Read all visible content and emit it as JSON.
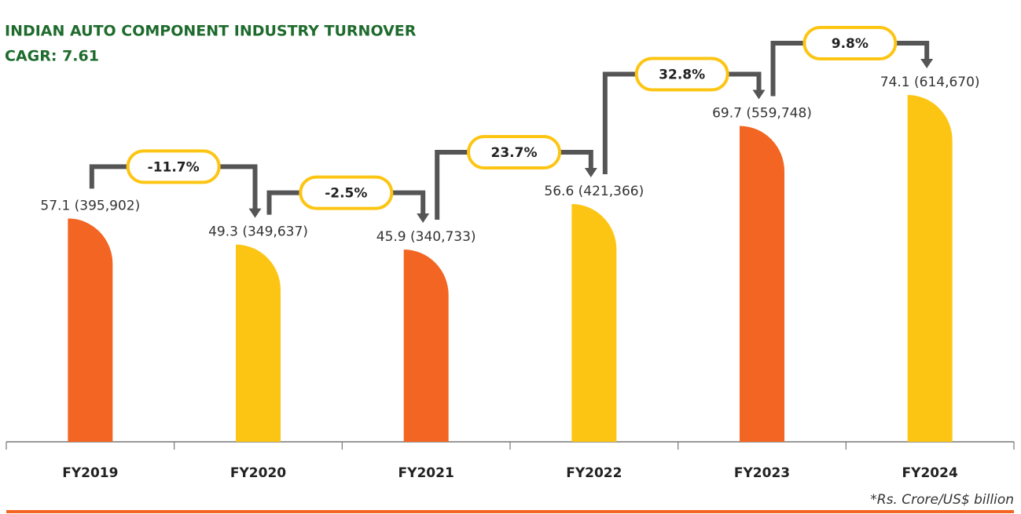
{
  "chart_data": {
    "type": "bar",
    "title": "INDIAN AUTO COMPONENT INDUSTRY TURNOVER",
    "subtitle": "CAGR: 7.61",
    "categories": [
      "FY2019",
      "FY2020",
      "FY2021",
      "FY2022",
      "FY2023",
      "FY2024"
    ],
    "values": [
      395902,
      349637,
      340733,
      421366,
      559748,
      614670
    ],
    "value_labels": [
      "57.1 (395,902)",
      "49.3 (349,637)",
      "45.9 (340,733)",
      "56.6 (421,366)",
      "69.7 (559,748)",
      "74.1 (614,670)"
    ],
    "colors": [
      "#f26522",
      "#fdc513",
      "#f26522",
      "#fdc513",
      "#f26522",
      "#fdc513"
    ],
    "growth_labels": [
      "-11.7%",
      "-2.5%",
      "23.7%",
      "32.8%",
      "9.8%"
    ],
    "footnote": "*Rs. Crore/US$ billion"
  }
}
